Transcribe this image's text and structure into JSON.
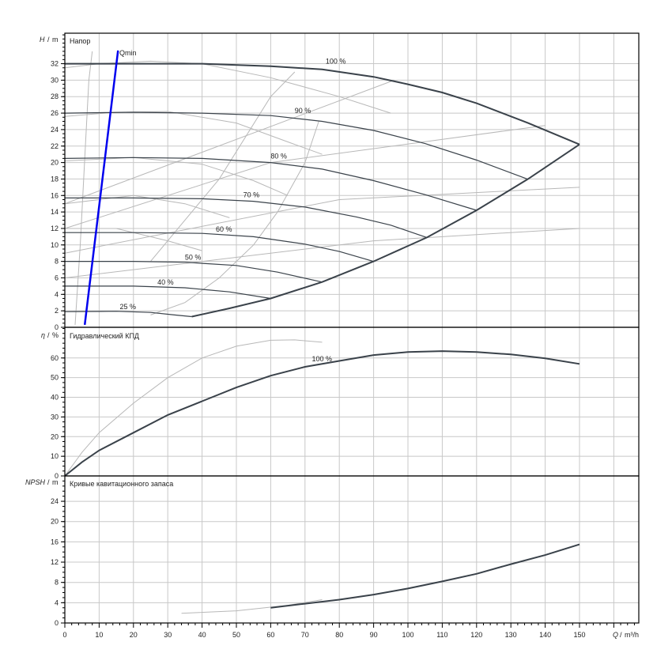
{
  "chart_data": [
    {
      "type": "line",
      "title": "Напор",
      "ylabel_var": "H",
      "ylabel_unit": "m",
      "xlim": [
        0,
        167
      ],
      "ylim": [
        0,
        35.7
      ],
      "yticks": [
        0,
        2,
        4,
        6,
        8,
        10,
        12,
        14,
        16,
        18,
        20,
        22,
        24,
        26,
        28,
        30,
        32
      ],
      "grid": true,
      "series": [
        {
          "name": "100 %",
          "points": [
            [
              0,
              32
            ],
            [
              20,
              32
            ],
            [
              40,
              32
            ],
            [
              60,
              31.7
            ],
            [
              75,
              31.3
            ],
            [
              90,
              30.4
            ],
            [
              100,
              29.5
            ],
            [
              110,
              28.5
            ],
            [
              120,
              27.2
            ],
            [
              135,
              24.8
            ],
            [
              150,
              22.2
            ]
          ],
          "label_at": [
            76,
            31.8
          ]
        },
        {
          "name": "90 %",
          "points": [
            [
              0,
              26
            ],
            [
              20,
              26.1
            ],
            [
              40,
              26
            ],
            [
              60,
              25.7
            ],
            [
              75,
              25
            ],
            [
              90,
              23.9
            ],
            [
              105,
              22.3
            ],
            [
              120,
              20.3
            ],
            [
              134.8,
              18
            ]
          ],
          "label_at": [
            67,
            25.8
          ]
        },
        {
          "name": "80 %",
          "points": [
            [
              0,
              20.5
            ],
            [
              20,
              20.6
            ],
            [
              40,
              20.5
            ],
            [
              60,
              20
            ],
            [
              75,
              19.2
            ],
            [
              90,
              17.8
            ],
            [
              105,
              16.1
            ],
            [
              120,
              14.2
            ]
          ],
          "label_at": [
            60,
            20.3
          ]
        },
        {
          "name": "70 %",
          "points": [
            [
              0,
              15.7
            ],
            [
              20,
              15.7
            ],
            [
              40,
              15.6
            ],
            [
              55,
              15.3
            ],
            [
              70,
              14.6
            ],
            [
              85,
              13.4
            ],
            [
              95,
              12.4
            ],
            [
              105.5,
              10.9
            ]
          ],
          "label_at": [
            52,
            15.6
          ]
        },
        {
          "name": "60 %",
          "points": [
            [
              0,
              11.5
            ],
            [
              20,
              11.5
            ],
            [
              40,
              11.4
            ],
            [
              55,
              11
            ],
            [
              70,
              10.1
            ],
            [
              80,
              9.2
            ],
            [
              89.9,
              8
            ]
          ],
          "label_at": [
            44,
            11.4
          ]
        },
        {
          "name": "50 %",
          "points": [
            [
              0,
              8
            ],
            [
              20,
              8
            ],
            [
              35,
              7.9
            ],
            [
              50,
              7.5
            ],
            [
              62,
              6.7
            ],
            [
              74.9,
              5.5
            ]
          ],
          "label_at": [
            35,
            8
          ]
        },
        {
          "name": "40 %",
          "points": [
            [
              0,
              5
            ],
            [
              20,
              5
            ],
            [
              35,
              4.8
            ],
            [
              48,
              4.3
            ],
            [
              60,
              3.5
            ]
          ],
          "label_at": [
            27,
            5
          ]
        },
        {
          "name": "25 %",
          "points": [
            [
              0,
              1.9
            ],
            [
              15,
              1.95
            ],
            [
              25,
              1.8
            ],
            [
              32,
              1.5
            ],
            [
              37,
              1.3
            ]
          ],
          "label_at": [
            16,
            2
          ]
        }
      ],
      "envelope": [
        [
          37,
          1.3
        ],
        [
          48,
          2.3
        ],
        [
          60,
          3.5
        ],
        [
          75,
          5.5
        ],
        [
          90,
          8
        ],
        [
          105.5,
          10.9
        ],
        [
          120,
          14.2
        ],
        [
          135,
          18
        ],
        [
          150,
          22.2
        ]
      ],
      "qmin": {
        "label": "Qmin",
        "points": [
          [
            5.8,
            0.3
          ],
          [
            15.5,
            33.6
          ]
        ]
      },
      "gray_curves": [
        [
          [
            3,
            0.3
          ],
          [
            4.5,
            10
          ],
          [
            6,
            22
          ],
          [
            7,
            30
          ],
          [
            8,
            33.5
          ]
        ],
        [
          [
            0,
            31.5
          ],
          [
            10,
            32
          ],
          [
            25,
            32.3
          ],
          [
            40,
            32
          ],
          [
            60,
            30.3
          ],
          [
            80,
            28
          ],
          [
            95,
            26
          ]
        ],
        [
          [
            0,
            25.6
          ],
          [
            15,
            26.1
          ],
          [
            30,
            26.2
          ],
          [
            50,
            24.8
          ],
          [
            65,
            22.5
          ],
          [
            75,
            21
          ]
        ],
        [
          [
            0,
            20.2
          ],
          [
            20,
            20.6
          ],
          [
            40,
            19.8
          ],
          [
            55,
            17.8
          ],
          [
            65,
            16
          ]
        ],
        [
          [
            0,
            15
          ],
          [
            20,
            16
          ],
          [
            35,
            15
          ],
          [
            48,
            13.3
          ]
        ],
        [
          [
            0,
            12
          ],
          [
            15,
            12
          ],
          [
            30,
            10.5
          ],
          [
            40,
            9.3
          ]
        ],
        [
          [
            0,
            15
          ],
          [
            96,
            30
          ]
        ],
        [
          [
            0,
            12
          ],
          [
            60,
            20
          ],
          [
            140,
            24.5
          ]
        ],
        [
          [
            0,
            9
          ],
          [
            80,
            15.5
          ],
          [
            150,
            17
          ]
        ],
        [
          [
            0,
            6
          ],
          [
            90,
            10.5
          ],
          [
            150,
            12
          ]
        ],
        [
          [
            25,
            1.5
          ],
          [
            35,
            3
          ],
          [
            45,
            6
          ],
          [
            55,
            10
          ],
          [
            62,
            14
          ],
          [
            70,
            20
          ],
          [
            74,
            25
          ]
        ],
        [
          [
            25,
            8
          ],
          [
            45,
            18
          ],
          [
            60,
            28
          ],
          [
            67,
            31
          ]
        ]
      ]
    },
    {
      "type": "line",
      "title": "Гидравлический КПД",
      "ylabel_var": "η",
      "ylabel_unit": "%",
      "xlim": [
        0,
        167
      ],
      "ylim": [
        0,
        75.6
      ],
      "yticks": [
        0,
        10,
        20,
        30,
        40,
        50,
        60
      ],
      "grid": true,
      "series": [
        {
          "name": "100 %",
          "points": [
            [
              0,
              0
            ],
            [
              5,
              7
            ],
            [
              10,
              13
            ],
            [
              20,
              22
            ],
            [
              30,
              31
            ],
            [
              40,
              38
            ],
            [
              50,
              45
            ],
            [
              60,
              51
            ],
            [
              70,
              55.5
            ],
            [
              80,
              58.5
            ],
            [
              90,
              61.5
            ],
            [
              100,
              63
            ],
            [
              110,
              63.5
            ],
            [
              120,
              63
            ],
            [
              130,
              61.8
            ],
            [
              140,
              59.8
            ],
            [
              150,
              57
            ]
          ],
          "label_at": [
            72,
            57.5
          ]
        }
      ],
      "gray_curves": [
        [
          [
            0,
            0
          ],
          [
            5,
            12
          ],
          [
            10,
            22
          ],
          [
            20,
            37
          ],
          [
            30,
            50
          ],
          [
            40,
            60
          ],
          [
            50,
            66
          ],
          [
            60,
            69
          ],
          [
            67,
            69.2
          ],
          [
            75,
            68
          ]
        ]
      ]
    },
    {
      "type": "line",
      "title": "Кривые кавитационного запаса",
      "ylabel_var": "NPSH",
      "ylabel_unit": "m",
      "xlim": [
        0,
        167
      ],
      "ylim": [
        0,
        29
      ],
      "yticks": [
        0,
        4,
        8,
        12,
        16,
        20,
        24
      ],
      "grid": true,
      "series": [
        {
          "name": "NPSH",
          "points": [
            [
              60,
              3
            ],
            [
              70,
              3.8
            ],
            [
              80,
              4.6
            ],
            [
              90,
              5.6
            ],
            [
              100,
              6.8
            ],
            [
              110,
              8.2
            ],
            [
              120,
              9.7
            ],
            [
              130,
              11.6
            ],
            [
              140,
              13.4
            ],
            [
              150,
              15.5
            ]
          ]
        }
      ],
      "gray_curves": [
        [
          [
            34,
            1.9
          ],
          [
            50,
            2.4
          ],
          [
            65,
            3.5
          ],
          [
            75,
            4.6
          ]
        ]
      ]
    }
  ],
  "x_axis": {
    "label_var": "Q",
    "label_unit": "m³/h",
    "ticks": [
      0,
      10,
      20,
      30,
      40,
      50,
      60,
      70,
      80,
      90,
      100,
      110,
      120,
      130,
      140,
      150
    ]
  }
}
